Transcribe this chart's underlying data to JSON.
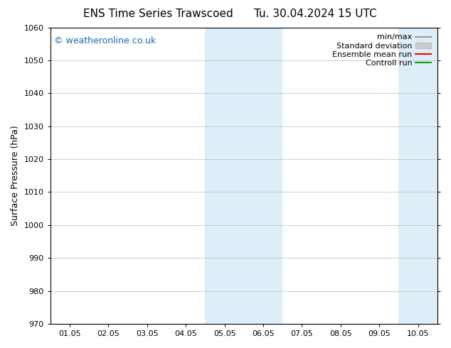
{
  "title_left": "ENS Time Series Trawscoed",
  "title_right": "Tu. 30.04.2024 15 UTC",
  "ylabel": "Surface Pressure (hPa)",
  "ylim": [
    970,
    1060
  ],
  "yticks": [
    970,
    980,
    990,
    1000,
    1010,
    1020,
    1030,
    1040,
    1050,
    1060
  ],
  "x_labels": [
    "01.05",
    "02.05",
    "03.05",
    "04.05",
    "05.05",
    "06.05",
    "07.05",
    "08.05",
    "09.05",
    "10.05"
  ],
  "x_values": [
    0,
    1,
    2,
    3,
    4,
    5,
    6,
    7,
    8,
    9
  ],
  "xlim": [
    -0.5,
    9.5
  ],
  "shaded_regions": [
    {
      "xmin": 3.5,
      "xmax": 5.5,
      "color": "#ddeef8"
    },
    {
      "xmin": 8.5,
      "xmax": 9.5,
      "color": "#ddeef8"
    }
  ],
  "watermark": "© weatheronline.co.uk",
  "watermark_color": "#1a6aab",
  "legend_items": [
    {
      "label": "min/max",
      "color": "#999999",
      "type": "line"
    },
    {
      "label": "Standard deviation",
      "color": "#cccccc",
      "type": "band"
    },
    {
      "label": "Ensemble mean run",
      "color": "#ff0000",
      "type": "line"
    },
    {
      "label": "Controll run",
      "color": "#00aa00",
      "type": "line"
    }
  ],
  "background_color": "#ffffff",
  "grid_color": "#bbbbbb",
  "title_fontsize": 11,
  "tick_fontsize": 8,
  "ylabel_fontsize": 9,
  "watermark_fontsize": 9,
  "legend_fontsize": 8
}
